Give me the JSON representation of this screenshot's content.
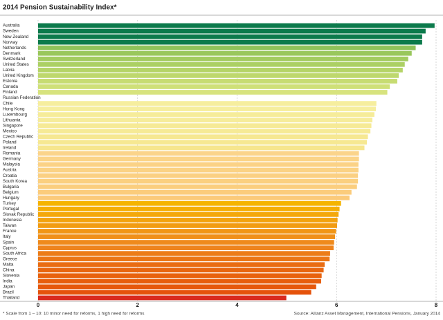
{
  "chart_data": {
    "type": "hbar",
    "title": "2014 Pension Sustainability Index*",
    "footnote": "* Scale from 1 – 10: 10 minor need for reforms, 1 high need for reforms",
    "source": "Source: Allianz Asset Management, International Pensions, January 2014",
    "categories": [
      "Australia",
      "Sweden",
      "New Zealand",
      "Norway",
      "Netherlands",
      "Denmark",
      "Switzerland",
      "United States",
      "Latvia",
      "United Kingdom",
      "Estonia",
      "Canada",
      "Finland",
      "Russian Federation",
      "Chile",
      "Hong Kong",
      "Luxembourg",
      "Lithuania",
      "Singapore",
      "Mexico",
      "Czech Republic",
      "Poland",
      "Ireland",
      "Romania",
      "Germany",
      "Malaysia",
      "Austria",
      "Croatia",
      "South Korea",
      "Bulgaria",
      "Belgium",
      "Hungary",
      "Turkey",
      "Portugal",
      "Slovak Republic",
      "Indonesia",
      "Taiwan",
      "France",
      "Italy",
      "Spain",
      "Cyprus",
      "South Africa",
      "Greece",
      "Malta",
      "China",
      "Slovenia",
      "India",
      "Japan",
      "Brazil",
      "Thailand"
    ],
    "values": [
      7.97,
      7.79,
      7.72,
      7.72,
      7.59,
      7.51,
      7.44,
      7.37,
      7.33,
      7.25,
      7.22,
      7.07,
      7.02,
      null,
      6.8,
      6.79,
      6.76,
      6.72,
      6.7,
      6.68,
      6.63,
      6.61,
      6.56,
      6.45,
      6.45,
      6.44,
      6.44,
      6.43,
      6.43,
      6.41,
      6.3,
      6.26,
      6.09,
      6.06,
      6.04,
      6.02,
      6.01,
      5.99,
      5.97,
      5.95,
      5.94,
      5.87,
      5.86,
      5.76,
      5.74,
      5.7,
      5.69,
      5.59,
      5.49,
      4.99
    ],
    "colors": [
      "#0b7a4b",
      "#0b7a4b",
      "#0b7a4b",
      "#0b7a4b",
      "#8fc25a",
      "#99c75c",
      "#a3cc60",
      "#acd064",
      "#b5d468",
      "#bed86d",
      "#c7dc72",
      "#cfe078",
      "#d7e37e",
      "#eeeaa0",
      "#f6ee9e",
      "#f6ee9e",
      "#f6ec9a",
      "#f6ec9a",
      "#f6ea96",
      "#f6ea96",
      "#f6e892",
      "#f6e892",
      "#f6e68e",
      "#fbd48a",
      "#fbd488",
      "#fbd286",
      "#fbd284",
      "#fbd082",
      "#fbd080",
      "#fbce7e",
      "#fbcc7c",
      "#fbca7a",
      "#f5b400",
      "#f5ae05",
      "#f4a80a",
      "#f3a20e",
      "#f29c12",
      "#f19616",
      "#f0901a",
      "#ef8a1c",
      "#ee841e",
      "#ec7c18",
      "#eb7616",
      "#e96c12",
      "#e8660f",
      "#e8620e",
      "#e75e0d",
      "#e6580c",
      "#e5520b",
      "#d92a1e"
    ],
    "xlim": [
      0,
      8
    ],
    "xticks": [
      0,
      2,
      4,
      6,
      8
    ],
    "grid": true
  }
}
